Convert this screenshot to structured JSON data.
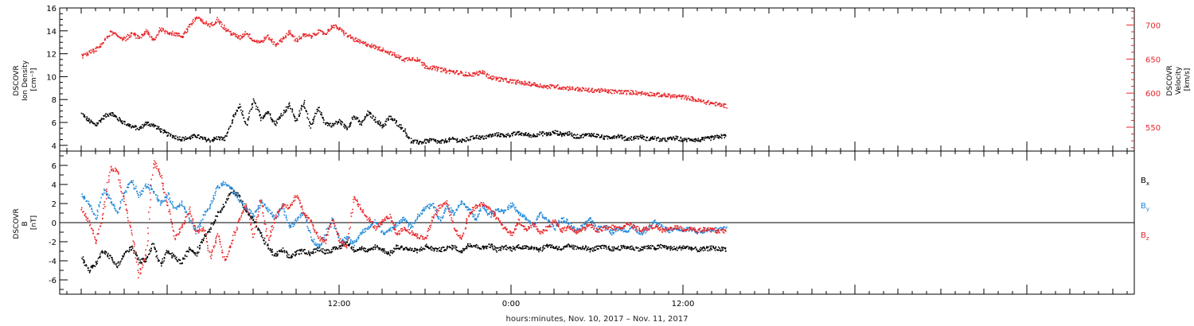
{
  "chart_data": [
    {
      "type": "scatter",
      "panel": "plasma",
      "title": "",
      "ylabel": [
        "DSCOVR",
        "Ion Density",
        "[cm⁻³]"
      ],
      "ylim": [
        3.5,
        16
      ],
      "yticks": [
        "4",
        "6",
        "8",
        "10",
        "12",
        "14",
        "16"
      ],
      "y2label": [
        "DSCOVR",
        "Velocity",
        "[km/s]"
      ],
      "y2lim": [
        515,
        725
      ],
      "y2ticks": [
        "550",
        "600",
        "650",
        "700"
      ],
      "series": [
        {
          "axis": "left",
          "color": "#000000",
          "x": [
            -6.0,
            -5.5,
            -5.0,
            -4.5,
            -4.0,
            -3.5,
            -3.0,
            -2.5,
            -2.0,
            -1.5,
            -1.0,
            -0.5,
            0.0,
            0.5,
            1.0,
            1.5,
            2.0,
            2.5,
            3.0,
            3.5,
            4.0,
            4.5,
            5.0,
            5.5,
            6.0,
            6.5,
            7.0,
            7.5,
            8.0,
            8.5,
            9.0,
            9.5,
            10.0,
            10.5,
            11.0,
            11.5,
            12.0,
            12.5,
            13.0,
            13.5,
            14.0,
            14.5,
            15.0,
            15.5,
            16.0,
            16.5,
            17.0,
            17.5,
            18.0,
            18.5,
            19.0,
            19.5,
            20.0,
            20.5,
            21.0,
            21.5,
            22.0,
            22.5,
            23.0,
            23.5,
            24.0,
            24.5,
            25.0,
            25.5,
            26.0,
            26.5,
            27.0,
            27.5,
            28.0,
            28.5,
            29.0,
            29.5,
            30.0,
            30.5,
            31.0,
            31.5,
            32.0,
            32.5,
            33.0,
            33.5,
            34.0,
            34.5,
            35.0,
            35.5,
            36.0,
            36.5,
            37.0,
            37.5,
            38.0,
            38.5,
            39.0
          ],
          "y": [
            6.8,
            6.2,
            5.8,
            6.5,
            6.9,
            6.4,
            6.0,
            5.7,
            5.5,
            6.0,
            5.8,
            5.4,
            5.0,
            4.8,
            4.6,
            4.7,
            4.9,
            4.6,
            4.5,
            4.7,
            4.6,
            6.2,
            7.5,
            5.8,
            8.0,
            6.4,
            7.0,
            5.9,
            6.8,
            7.6,
            6.1,
            7.9,
            5.6,
            7.3,
            6.0,
            5.8,
            6.2,
            5.5,
            6.6,
            5.9,
            6.9,
            6.3,
            5.7,
            6.5,
            6.0,
            5.4,
            4.4,
            4.3,
            4.4,
            4.5,
            4.3,
            4.5,
            4.6,
            4.4,
            4.6,
            4.8,
            4.7,
            4.9,
            5.0,
            4.9,
            5.0,
            5.1,
            5.0,
            4.9,
            5.1,
            5.0,
            5.2,
            5.0,
            5.1,
            4.8,
            4.9,
            5.0,
            4.9,
            4.7,
            4.8,
            4.9,
            4.6,
            4.7,
            4.8,
            4.6,
            4.7,
            4.5,
            4.6,
            4.7,
            4.5,
            4.6,
            4.5,
            4.6,
            4.7,
            4.8,
            4.9
          ]
        },
        {
          "axis": "right",
          "color": "#e8262a",
          "x": [
            -6.0,
            -5.5,
            -5.0,
            -4.5,
            -4.0,
            -3.5,
            -3.0,
            -2.5,
            -2.0,
            -1.5,
            -1.0,
            -0.5,
            0.0,
            0.5,
            1.0,
            1.5,
            2.0,
            2.5,
            3.0,
            3.5,
            4.0,
            4.5,
            5.0,
            5.5,
            6.0,
            6.5,
            7.0,
            7.5,
            8.0,
            8.5,
            9.0,
            9.5,
            10.0,
            10.5,
            11.0,
            11.5,
            12.0,
            12.5,
            13.0,
            13.5,
            14.0,
            14.5,
            15.0,
            15.5,
            16.0,
            16.5,
            17.0,
            17.5,
            18.0,
            18.5,
            19.0,
            19.5,
            20.0,
            20.5,
            21.0,
            21.5,
            22.0,
            22.5,
            23.0,
            23.5,
            24.0,
            24.5,
            25.0,
            25.5,
            26.0,
            26.5,
            27.0,
            27.5,
            28.0,
            28.5,
            29.0,
            29.5,
            30.0,
            30.5,
            31.0,
            31.5,
            32.0,
            32.5,
            33.0,
            33.5,
            34.0,
            34.5,
            35.0,
            35.5,
            36.0,
            36.5,
            37.0,
            37.5,
            38.0,
            38.5,
            39.0
          ],
          "y": [
            655,
            660,
            665,
            675,
            690,
            685,
            680,
            688,
            682,
            692,
            678,
            695,
            690,
            688,
            684,
            698,
            712,
            705,
            700,
            710,
            695,
            688,
            682,
            690,
            678,
            676,
            684,
            672,
            680,
            690,
            678,
            686,
            684,
            691,
            688,
            700,
            695,
            686,
            680,
            675,
            672,
            668,
            665,
            660,
            655,
            650,
            652,
            650,
            640,
            638,
            636,
            633,
            632,
            630,
            628,
            629,
            632,
            624,
            622,
            620,
            618,
            617,
            615,
            614,
            612,
            610,
            611,
            609,
            608,
            607,
            606,
            605,
            605,
            604,
            603,
            603,
            602,
            602,
            601,
            600,
            599,
            598,
            597,
            596,
            595,
            593,
            590,
            588,
            586,
            584,
            582
          ]
        }
      ]
    },
    {
      "type": "scatter",
      "panel": "magnetic",
      "title": "",
      "ylabel": [
        "DSCOVR",
        "B",
        "[nT]"
      ],
      "ylim": [
        -7.5,
        7.5
      ],
      "yticks": [
        "-6",
        "-4",
        "-2",
        "0",
        "2",
        "4",
        "6"
      ],
      "zero_line": true,
      "series": [
        {
          "name": "B",
          "sub": "x",
          "color": "#000000",
          "x": [
            -6.0,
            -5.5,
            -5.0,
            -4.5,
            -4.0,
            -3.5,
            -3.0,
            -2.5,
            -2.0,
            -1.5,
            -1.0,
            -0.5,
            0.0,
            0.5,
            1.0,
            1.5,
            2.0,
            2.5,
            3.0,
            3.5,
            4.0,
            4.5,
            5.0,
            5.5,
            6.0,
            6.5,
            7.0,
            7.5,
            8.0,
            8.5,
            9.0,
            9.5,
            10.0,
            10.5,
            11.0,
            11.5,
            12.0,
            12.5,
            13.0,
            13.5,
            14.0,
            14.5,
            15.0,
            15.5,
            16.0,
            16.5,
            17.0,
            17.5,
            18.0,
            18.5,
            19.0,
            19.5,
            20.0,
            20.5,
            21.0,
            21.5,
            22.0,
            22.5,
            23.0,
            23.5,
            24.0,
            24.5,
            25.0,
            25.5,
            26.0,
            26.5,
            27.0,
            27.5,
            28.0,
            28.5,
            29.0,
            29.5,
            30.0,
            30.5,
            31.0,
            31.5,
            32.0,
            32.5,
            33.0,
            33.5,
            34.0,
            34.5,
            35.0,
            35.5,
            36.0,
            36.5,
            37.0,
            37.5,
            38.0,
            38.5,
            39.0
          ],
          "y": [
            -3.5,
            -5.0,
            -4.2,
            -2.8,
            -3.6,
            -4.5,
            -3.2,
            -2.5,
            -4.0,
            -3.8,
            -2.2,
            -4.4,
            -3.0,
            -3.6,
            -4.2,
            -2.6,
            -3.2,
            -1.5,
            -0.5,
            1.0,
            2.0,
            3.5,
            2.8,
            1.2,
            0.3,
            -1.2,
            -2.5,
            -3.4,
            -2.8,
            -3.6,
            -3.1,
            -2.9,
            -3.2,
            -2.6,
            -3.0,
            -2.8,
            -2.5,
            -2.0,
            -2.8,
            -2.6,
            -3.0,
            -2.4,
            -2.8,
            -3.2,
            -2.5,
            -2.6,
            -2.8,
            -2.9,
            -2.4,
            -2.7,
            -2.8,
            -2.6,
            -2.5,
            -3.0,
            -2.2,
            -2.4,
            -2.6,
            -2.3,
            -2.8,
            -2.5,
            -2.7,
            -2.4,
            -2.6,
            -2.5,
            -2.8,
            -2.3,
            -2.5,
            -2.7,
            -2.4,
            -2.6,
            -2.5,
            -2.8,
            -2.6,
            -2.5,
            -2.7,
            -2.6,
            -2.5,
            -2.6,
            -2.7,
            -2.5,
            -2.6,
            -2.4,
            -2.6,
            -2.7,
            -2.5,
            -2.6,
            -2.8,
            -2.7,
            -2.6,
            -2.7,
            -2.7
          ]
        },
        {
          "name": "B",
          "sub": "y",
          "color": "#1e88d8",
          "x": [
            -6.0,
            -5.5,
            -5.0,
            -4.5,
            -4.0,
            -3.5,
            -3.0,
            -2.5,
            -2.0,
            -1.5,
            -1.0,
            -0.5,
            0.0,
            0.5,
            1.0,
            1.5,
            2.0,
            2.5,
            3.0,
            3.5,
            4.0,
            4.5,
            5.0,
            5.5,
            6.0,
            6.5,
            7.0,
            7.5,
            8.0,
            8.5,
            9.0,
            9.5,
            10.0,
            10.5,
            11.0,
            11.5,
            12.0,
            12.5,
            13.0,
            13.5,
            14.0,
            14.5,
            15.0,
            15.5,
            16.0,
            16.5,
            17.0,
            17.5,
            18.0,
            18.5,
            19.0,
            19.5,
            20.0,
            20.5,
            21.0,
            21.5,
            22.0,
            22.5,
            23.0,
            23.5,
            24.0,
            24.5,
            25.0,
            25.5,
            26.0,
            26.5,
            27.0,
            27.5,
            28.0,
            28.5,
            29.0,
            29.5,
            30.0,
            30.5,
            31.0,
            31.5,
            32.0,
            32.5,
            33.0,
            33.5,
            34.0,
            34.5,
            35.0,
            35.5,
            36.0,
            36.5,
            37.0,
            37.5,
            38.0,
            38.5,
            39.0
          ],
          "y": [
            3.0,
            2.0,
            0.5,
            3.5,
            2.5,
            1.0,
            3.2,
            4.5,
            2.8,
            4.0,
            3.5,
            2.0,
            3.0,
            1.5,
            2.2,
            0.5,
            -1.0,
            0.8,
            2.0,
            3.8,
            4.2,
            3.5,
            2.5,
            1.5,
            0.8,
            2.2,
            1.5,
            0.5,
            1.8,
            -0.5,
            0.3,
            1.2,
            -1.5,
            -2.5,
            -1.2,
            0.5,
            -2.0,
            -1.5,
            -2.2,
            -1.0,
            -0.5,
            0.2,
            -1.0,
            -0.8,
            0.0,
            0.5,
            -0.5,
            0.8,
            1.5,
            2.0,
            0.2,
            1.8,
            1.0,
            2.2,
            1.5,
            0.5,
            1.8,
            0.8,
            1.5,
            1.2,
            2.0,
            1.0,
            0.5,
            -0.2,
            1.0,
            0.3,
            -0.5,
            0.5,
            0.0,
            -0.8,
            -0.3,
            0.4,
            -0.6,
            -0.2,
            -1.0,
            -0.5,
            -0.8,
            -0.3,
            -1.2,
            -0.6,
            0.2,
            -0.4,
            -0.8,
            -0.5,
            -0.7,
            -0.6,
            -0.9,
            -0.8,
            -0.6,
            -0.7,
            -0.5
          ]
        },
        {
          "name": "B",
          "sub": "z",
          "color": "#e8262a",
          "x": [
            -6.0,
            -5.5,
            -5.0,
            -4.5,
            -4.0,
            -3.5,
            -3.0,
            -2.5,
            -2.0,
            -1.5,
            -1.0,
            -0.5,
            0.0,
            0.5,
            1.0,
            1.5,
            2.0,
            2.5,
            3.0,
            3.5,
            4.0,
            4.5,
            5.0,
            5.5,
            6.0,
            6.5,
            7.0,
            7.5,
            8.0,
            8.5,
            9.0,
            9.5,
            10.0,
            10.5,
            11.0,
            11.5,
            12.0,
            12.5,
            13.0,
            13.5,
            14.0,
            14.5,
            15.0,
            15.5,
            16.0,
            16.5,
            17.0,
            17.5,
            18.0,
            18.5,
            19.0,
            19.5,
            20.0,
            20.5,
            21.0,
            21.5,
            22.0,
            22.5,
            23.0,
            23.5,
            24.0,
            24.5,
            25.0,
            25.5,
            26.0,
            26.5,
            27.0,
            27.5,
            28.0,
            28.5,
            29.0,
            29.5,
            30.0,
            30.5,
            31.0,
            31.5,
            32.0,
            32.5,
            33.0,
            33.5,
            34.0,
            34.5,
            35.0,
            35.5,
            36.0,
            36.5,
            37.0,
            37.5,
            38.0,
            38.5,
            39.0
          ],
          "y": [
            1.5,
            0.2,
            -2.0,
            1.0,
            5.8,
            5.5,
            2.0,
            -1.0,
            -5.5,
            -3.0,
            6.5,
            5.0,
            2.0,
            -1.5,
            -0.5,
            1.5,
            -1.0,
            -0.5,
            -3.5,
            -1.0,
            -4.0,
            -2.0,
            0.5,
            2.0,
            -1.5,
            2.5,
            -1.8,
            0.5,
            2.0,
            1.5,
            3.0,
            1.0,
            0.2,
            -1.5,
            -2.0,
            0.5,
            -1.8,
            -2.5,
            2.8,
            1.5,
            0.5,
            -0.5,
            0.2,
            0.8,
            -1.2,
            -0.5,
            -1.0,
            -1.4,
            -1.6,
            0.5,
            1.8,
            2.2,
            -0.5,
            -1.8,
            0.8,
            1.8,
            2.0,
            1.5,
            0.5,
            -0.5,
            -1.2,
            0.2,
            -0.8,
            0.0,
            -1.0,
            -0.5,
            0.3,
            -0.8,
            -0.4,
            -1.0,
            -0.6,
            -0.2,
            -0.8,
            -0.5,
            -0.4,
            -0.6,
            0.0,
            -0.4,
            -0.7,
            -0.5,
            -0.3,
            -0.8,
            -0.6,
            -0.4,
            -0.7,
            -0.5,
            -0.8,
            -0.6,
            -0.7,
            -0.9,
            -0.8
          ]
        }
      ]
    }
  ],
  "x_axis": {
    "xlim": [
      -7.5,
      67.5
    ],
    "tick_labels": [
      {
        "x": 12,
        "label": "12:00"
      },
      {
        "x": 24,
        "label": "0:00"
      },
      {
        "x": 36,
        "label": "12:00"
      }
    ],
    "xlabel": "hours:minutes, Nov. 10, 2017 – Nov. 11, 2017"
  },
  "colors": {
    "black": "#000000",
    "blue": "#1e88d8",
    "red": "#e8262a"
  }
}
